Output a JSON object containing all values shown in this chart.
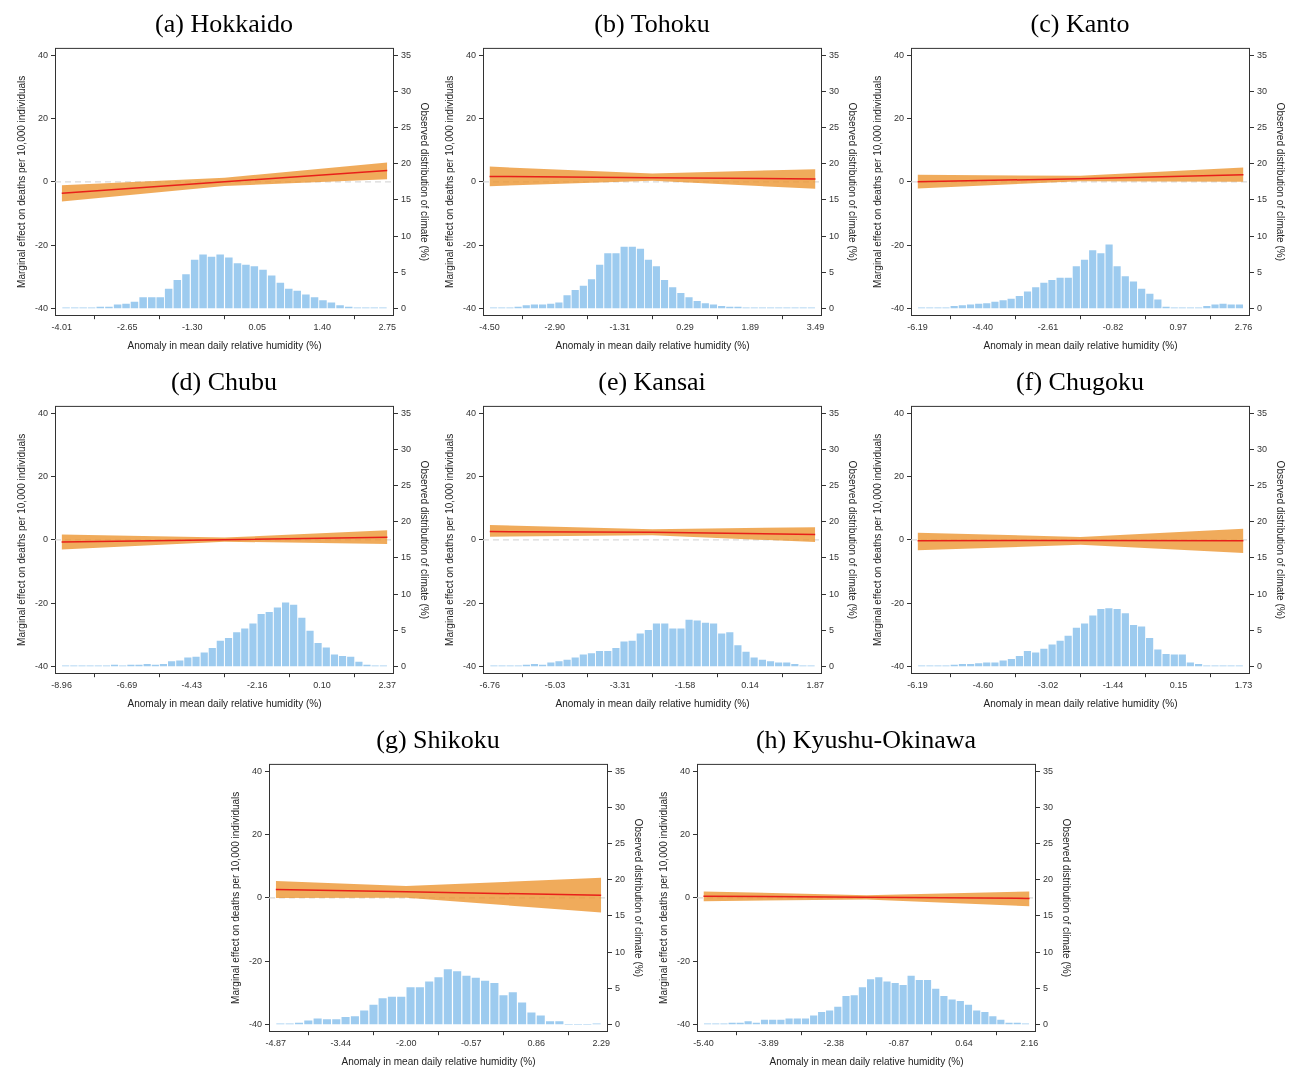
{
  "chart_data": [
    {
      "type": "line",
      "title": "(a) Hokkaido",
      "xlabel": "Anomaly in mean daily relative humidity (%)",
      "ylabel": "Marginal effect on deaths per 10,000 individuals",
      "y2label": "Observed distribution of climate (%)",
      "xlim": [
        -4.15,
        2.89
      ],
      "xticks": [
        -4.01,
        -2.65,
        {
          "value": -1.3,
          "label": "-1.30"
        },
        0.05,
        {
          "value": 1.4,
          "label": "1.40"
        },
        2.75
      ],
      "ylim": [
        -42.1,
        42.1
      ],
      "yticks": [
        -40,
        -20,
        0,
        20,
        40
      ],
      "y2lim": [
        -0.92,
        35.92
      ],
      "y2ticks": [
        0,
        5,
        10,
        15,
        20,
        25,
        30,
        35
      ],
      "ref_lines": [
        {
          "axis": "y",
          "value": 0,
          "color": "#d9d9d9",
          "line_style": "dashed"
        }
      ],
      "series": [
        {
          "type": "histogram",
          "axis": "y2",
          "color": "#9dcbef",
          "bins": [
            -4.01,
            -3.83,
            -3.65,
            -3.48,
            -3.3,
            -3.12,
            -2.94,
            -2.76,
            -2.59,
            -2.41,
            -2.23,
            -2.05,
            -1.88,
            -1.7,
            -1.52,
            -1.34,
            -1.16,
            -0.99,
            -0.81,
            -0.63,
            -0.45,
            -0.27,
            -0.1,
            0.08,
            0.26,
            0.44,
            0.62,
            0.79,
            0.97,
            1.15,
            1.33,
            1.5,
            1.68,
            1.86,
            2.04,
            2.22,
            2.39,
            2.57,
            2.75
          ],
          "values": [
            0.1,
            0.1,
            0.1,
            0.1,
            0.2,
            0.2,
            0.5,
            0.6,
            0.9,
            1.5,
            1.5,
            1.5,
            2.7,
            3.9,
            4.7,
            6.7,
            7.4,
            7.1,
            7.4,
            7.0,
            6.2,
            6.0,
            5.8,
            5.3,
            4.5,
            3.5,
            2.7,
            2.4,
            1.9,
            1.5,
            1.1,
            0.8,
            0.4,
            0.2,
            0.1,
            0.1,
            0.1,
            0.1
          ]
        },
        {
          "type": "line",
          "color": "#e8201a",
          "x": [
            -4.01,
            -0.63,
            2.75
          ],
          "values": [
            -3.6,
            0,
            3.6
          ],
          "lower": [
            -6.2,
            -1.3,
            0.8
          ],
          "upper": [
            -1.1,
            1.3,
            6.1
          ]
        }
      ]
    },
    {
      "type": "line",
      "title": "(b) Tohoku",
      "xlabel": "Anomaly in mean daily relative humidity (%)",
      "ylabel": "Marginal effect on deaths per 10,000 individuals",
      "y2label": "Observed distribution of climate (%)",
      "xlim": [
        -4.66,
        3.65
      ],
      "xticks": [
        {
          "value": -4.5,
          "label": "-4.50"
        },
        {
          "value": -2.9,
          "label": "-2.90"
        },
        -1.31,
        0.29,
        1.89,
        3.49
      ],
      "ylim": [
        -42.1,
        42.1
      ],
      "yticks": [
        -40,
        -20,
        0,
        20,
        40
      ],
      "y2lim": [
        -0.92,
        35.92
      ],
      "y2ticks": [
        0,
        5,
        10,
        15,
        20,
        25,
        30,
        35
      ],
      "ref_lines": [
        {
          "axis": "y",
          "value": 0,
          "color": "#d9d9d9",
          "line_style": "dashed"
        }
      ],
      "series": [
        {
          "type": "histogram",
          "axis": "y2",
          "color": "#9dcbef",
          "bins": [
            -4.5,
            -4.3,
            -4.1,
            -3.9,
            -3.7,
            -3.5,
            -3.3,
            -3.1,
            -2.9,
            -2.7,
            -2.5,
            -2.3,
            -2.1,
            -1.9,
            -1.7,
            -1.5,
            -1.3,
            -1.1,
            -0.9,
            -0.7,
            -0.51,
            -0.31,
            -0.11,
            0.09,
            0.29,
            0.49,
            0.69,
            0.89,
            1.09,
            1.29,
            1.49,
            1.69,
            1.89,
            2.09,
            2.29,
            2.49,
            2.69,
            2.89,
            3.09,
            3.29,
            3.49
          ],
          "values": [
            0.1,
            0.1,
            0.1,
            0.2,
            0.4,
            0.5,
            0.5,
            0.6,
            0.8,
            1.8,
            2.5,
            3.1,
            4.0,
            6.0,
            7.6,
            7.6,
            8.5,
            8.5,
            8.2,
            6.7,
            5.8,
            3.9,
            2.9,
            2.1,
            1.5,
            1.0,
            0.7,
            0.5,
            0.3,
            0.2,
            0.2,
            0.1,
            0.1,
            0.1,
            0.1,
            0.1,
            0.1,
            0.1,
            0.1,
            0.1
          ]
        },
        {
          "type": "line",
          "color": "#e8201a",
          "x": [
            -4.5,
            -0.51,
            3.49
          ],
          "values": [
            1.7,
            1.3,
            0.9
          ],
          "lower": [
            -1.4,
            0.3,
            -2.2
          ],
          "upper": [
            4.8,
            2.6,
            4.0
          ]
        }
      ]
    },
    {
      "type": "line",
      "title": "(c) Kanto",
      "xlabel": "Anomaly in mean daily relative humidity (%)",
      "ylabel": "Marginal effect on deaths per 10,000 individuals",
      "y2label": "Observed distribution of climate (%)",
      "xlim": [
        -6.37,
        2.94
      ],
      "xticks": [
        -6.19,
        {
          "value": -4.4,
          "label": "-4.40"
        },
        -2.61,
        -0.82,
        0.97,
        2.76
      ],
      "ylim": [
        -42.1,
        42.1
      ],
      "yticks": [
        -40,
        -20,
        0,
        20,
        40
      ],
      "y2lim": [
        -0.92,
        35.92
      ],
      "y2ticks": [
        0,
        5,
        10,
        15,
        20,
        25,
        30,
        35
      ],
      "ref_lines": [
        {
          "axis": "y",
          "value": 0,
          "color": "#d9d9d9",
          "line_style": "dashed"
        }
      ],
      "series": [
        {
          "type": "histogram",
          "axis": "y2",
          "color": "#9dcbef",
          "bins": [
            -6.19,
            -5.97,
            -5.74,
            -5.52,
            -5.3,
            -5.07,
            -4.85,
            -4.62,
            -4.4,
            -4.18,
            -3.95,
            -3.73,
            -3.51,
            -3.28,
            -3.06,
            -2.83,
            -2.61,
            -2.39,
            -2.16,
            -1.94,
            -1.72,
            -1.49,
            -1.27,
            -1.04,
            -0.82,
            -0.6,
            -0.37,
            -0.15,
            0.08,
            0.3,
            0.52,
            0.75,
            0.97,
            1.19,
            1.42,
            1.64,
            1.87,
            2.09,
            2.31,
            2.54,
            2.76
          ],
          "values": [
            0.1,
            0.1,
            0.1,
            0.1,
            0.3,
            0.4,
            0.5,
            0.6,
            0.7,
            0.9,
            1.1,
            1.3,
            1.7,
            2.3,
            2.9,
            3.5,
            3.9,
            4.2,
            4.2,
            5.8,
            6.7,
            8.0,
            7.6,
            8.8,
            5.8,
            4.4,
            3.7,
            2.7,
            2.0,
            1.2,
            0.2,
            0.1,
            0.1,
            0.1,
            0.1,
            0.3,
            0.5,
            0.6,
            0.5,
            0.5
          ]
        },
        {
          "type": "line",
          "color": "#e8201a",
          "x": [
            -6.19,
            -1.72,
            2.76
          ],
          "values": [
            0,
            1.0,
            2.2
          ],
          "lower": [
            -2.1,
            0.2,
            0
          ],
          "upper": [
            2.2,
            1.9,
            4.5
          ]
        }
      ]
    },
    {
      "type": "line",
      "title": "(d) Chubu",
      "xlabel": "Anomaly in mean daily relative humidity (%)",
      "ylabel": "Marginal effect on deaths per 10,000 individuals",
      "y2label": "Observed distribution of climate (%)",
      "xlim": [
        -9.19,
        2.6
      ],
      "xticks": [
        -8.96,
        -6.69,
        -4.43,
        -2.16,
        {
          "value": 0.1,
          "label": "0.10"
        },
        2.37
      ],
      "ylim": [
        -42.1,
        42.1
      ],
      "yticks": [
        -40,
        -20,
        0,
        20,
        40
      ],
      "y2lim": [
        -0.92,
        35.92
      ],
      "y2ticks": [
        0,
        5,
        10,
        15,
        20,
        25,
        30,
        35
      ],
      "ref_lines": [
        {
          "axis": "y",
          "value": 0,
          "color": "#d9d9d9",
          "line_style": "dashed"
        }
      ],
      "series": [
        {
          "type": "histogram",
          "axis": "y2",
          "color": "#9dcbef",
          "bins": [
            -8.96,
            -8.68,
            -8.39,
            -8.11,
            -7.83,
            -7.54,
            -7.26,
            -6.98,
            -6.69,
            -6.41,
            -6.13,
            -5.84,
            -5.56,
            -5.28,
            -4.99,
            -4.71,
            -4.43,
            -4.14,
            -3.86,
            -3.58,
            -3.3,
            -3.01,
            -2.73,
            -2.45,
            -2.16,
            -1.88,
            -1.6,
            -1.31,
            -1.03,
            -0.75,
            -0.46,
            -0.18,
            0.1,
            0.39,
            0.67,
            0.95,
            1.24,
            1.52,
            1.8,
            2.09,
            2.37
          ],
          "values": [
            0.1,
            0.1,
            0.1,
            0.1,
            0.1,
            0.1,
            0.2,
            0.1,
            0.2,
            0.2,
            0.3,
            0.2,
            0.3,
            0.7,
            0.8,
            1.2,
            1.3,
            1.9,
            2.5,
            3.5,
            3.9,
            4.7,
            5.2,
            5.9,
            7.2,
            7.5,
            8.1,
            8.8,
            8.5,
            6.7,
            4.9,
            3.2,
            2.6,
            1.6,
            1.4,
            1.3,
            0.6,
            0.2,
            0.1,
            0.1
          ]
        },
        {
          "type": "line",
          "color": "#e8201a",
          "x": [
            -8.96,
            -3.3,
            2.37
          ],
          "values": [
            -0.7,
            0,
            0.8
          ],
          "lower": [
            -3.1,
            -0.6,
            -1.3
          ],
          "upper": [
            1.7,
            0.7,
            3.0
          ]
        }
      ]
    },
    {
      "type": "line",
      "title": "(e) Kansai",
      "xlabel": "Anomaly in mean daily relative humidity (%)",
      "ylabel": "Marginal effect on deaths per 10,000 individuals",
      "y2label": "Observed distribution of climate (%)",
      "xlim": [
        -6.94,
        2.05
      ],
      "xticks": [
        -6.76,
        -5.03,
        -3.31,
        -1.58,
        0.14,
        1.87
      ],
      "ylim": [
        -42.1,
        42.1
      ],
      "yticks": [
        -40,
        -20,
        0,
        20,
        40
      ],
      "y2lim": [
        -0.92,
        35.92
      ],
      "y2ticks": [
        0,
        5,
        10,
        15,
        20,
        25,
        30,
        35
      ],
      "ref_lines": [
        {
          "axis": "y",
          "value": 0,
          "color": "#d9d9d9",
          "line_style": "dashed"
        }
      ],
      "series": [
        {
          "type": "histogram",
          "axis": "y2",
          "color": "#9dcbef",
          "bins": [
            -6.76,
            -6.54,
            -6.33,
            -6.11,
            -5.9,
            -5.68,
            -5.47,
            -5.25,
            -5.03,
            -4.82,
            -4.6,
            -4.39,
            -4.17,
            -3.96,
            -3.74,
            -3.52,
            -3.31,
            -3.09,
            -2.88,
            -2.66,
            -2.45,
            -2.23,
            -2.01,
            -1.8,
            -1.58,
            -1.37,
            -1.15,
            -0.93,
            -0.72,
            -0.5,
            -0.29,
            -0.07,
            0.14,
            0.36,
            0.58,
            0.79,
            1.01,
            1.22,
            1.44,
            1.65,
            1.87
          ],
          "values": [
            0.1,
            0.1,
            0.1,
            0.1,
            0.2,
            0.3,
            0.2,
            0.5,
            0.7,
            0.9,
            1.2,
            1.6,
            1.8,
            2.1,
            2.1,
            2.5,
            3.4,
            3.5,
            4.5,
            5.0,
            5.9,
            5.9,
            5.2,
            5.2,
            6.4,
            6.3,
            6.0,
            5.9,
            4.5,
            4.7,
            2.9,
            2.0,
            1.2,
            0.9,
            0.7,
            0.5,
            0.5,
            0.3,
            0.1,
            0.1
          ]
        },
        {
          "type": "line",
          "color": "#e8201a",
          "x": [
            -6.76,
            -2.45,
            1.87
          ],
          "values": [
            2.6,
            2.4,
            1.7
          ],
          "lower": [
            1.0,
            1.4,
            -0.7
          ],
          "upper": [
            4.7,
            3.3,
            4.0
          ]
        }
      ]
    },
    {
      "type": "line",
      "title": "(f) Chugoku",
      "xlabel": "Anomaly in mean daily relative humidity (%)",
      "ylabel": "Marginal effect on deaths per 10,000 individuals",
      "y2label": "Observed distribution of climate (%)",
      "xlim": [
        -6.35,
        1.89
      ],
      "xticks": [
        -6.19,
        {
          "value": -4.6,
          "label": "-4.60"
        },
        -3.02,
        -1.44,
        0.15,
        1.73
      ],
      "ylim": [
        -42.1,
        42.1
      ],
      "yticks": [
        -40,
        -20,
        0,
        20,
        40
      ],
      "y2lim": [
        -0.92,
        35.92
      ],
      "y2ticks": [
        0,
        5,
        10,
        15,
        20,
        25,
        30,
        35
      ],
      "ref_lines": [
        {
          "axis": "y",
          "value": 0,
          "color": "#d9d9d9",
          "line_style": "dashed"
        }
      ],
      "series": [
        {
          "type": "histogram",
          "axis": "y2",
          "color": "#9dcbef",
          "bins": [
            -6.19,
            -5.99,
            -5.79,
            -5.6,
            -5.4,
            -5.2,
            -5.0,
            -4.8,
            -4.61,
            -4.41,
            -4.21,
            -4.01,
            -3.81,
            -3.62,
            -3.42,
            -3.22,
            -3.02,
            -2.82,
            -2.63,
            -2.43,
            -2.23,
            -2.03,
            -1.83,
            -1.64,
            -1.44,
            -1.24,
            -1.04,
            -0.84,
            -0.65,
            -0.45,
            -0.25,
            -0.05,
            0.15,
            0.34,
            0.54,
            0.74,
            0.94,
            1.14,
            1.33,
            1.53,
            1.73
          ],
          "values": [
            0.1,
            0.1,
            0.1,
            0.1,
            0.2,
            0.3,
            0.3,
            0.4,
            0.5,
            0.5,
            0.8,
            1.0,
            1.4,
            2.1,
            1.9,
            2.4,
            3.0,
            3.5,
            4.2,
            5.3,
            5.9,
            7.0,
            7.9,
            8.0,
            7.9,
            7.3,
            5.7,
            5.5,
            3.9,
            2.3,
            1.7,
            1.6,
            1.6,
            0.5,
            0.3,
            0.1,
            0.1,
            0.1,
            0.1,
            0.1
          ]
        },
        {
          "type": "line",
          "color": "#e8201a",
          "x": [
            -6.19,
            -2.23,
            1.73
          ],
          "values": [
            -0.3,
            -0.2,
            -0.3
          ],
          "lower": [
            -3.3,
            -1.6,
            -4.2
          ],
          "upper": [
            2.2,
            0.9,
            3.5
          ]
        }
      ]
    },
    {
      "type": "line",
      "title": "(g) Shikoku",
      "xlabel": "Anomaly in mean daily relative humidity (%)",
      "ylabel": "Marginal effect on deaths per 10,000 individuals",
      "y2label": "Observed distribution of climate (%)",
      "xlim": [
        -5.02,
        2.44
      ],
      "xticks": [
        -4.87,
        -3.44,
        {
          "value": -2,
          "label": "-2.00"
        },
        -0.57,
        0.86,
        2.29
      ],
      "ylim": [
        -42.1,
        42.1
      ],
      "yticks": [
        -40,
        -20,
        0,
        20,
        40
      ],
      "y2lim": [
        -0.92,
        35.92
      ],
      "y2ticks": [
        0,
        5,
        10,
        15,
        20,
        25,
        30,
        35
      ],
      "ref_lines": [
        {
          "axis": "y",
          "value": 0,
          "color": "#d9d9d9",
          "line_style": "dashed"
        }
      ],
      "series": [
        {
          "type": "histogram",
          "axis": "y2",
          "color": "#9dcbef",
          "bins": [
            -4.87,
            -4.67,
            -4.46,
            -4.26,
            -4.05,
            -3.85,
            -3.64,
            -3.44,
            -3.23,
            -3.03,
            -2.82,
            -2.62,
            -2.42,
            -2.21,
            -2.01,
            -1.8,
            -1.6,
            -1.39,
            -1.19,
            -0.98,
            -0.78,
            -0.57,
            -0.37,
            -0.16,
            0.04,
            0.24,
            0.45,
            0.65,
            0.86,
            1.06,
            1.27,
            1.47,
            1.68,
            1.88,
            2.09,
            2.29
          ],
          "values": [
            0.1,
            0.1,
            0.2,
            0.5,
            0.8,
            0.7,
            0.7,
            1.0,
            1.1,
            1.9,
            2.7,
            3.6,
            3.8,
            3.8,
            5.1,
            5.1,
            5.9,
            6.5,
            7.6,
            7.3,
            6.7,
            6.4,
            6.0,
            5.7,
            4.0,
            4.4,
            3.0,
            1.6,
            1.2,
            0.4,
            0.4,
            0,
            0,
            0,
            0.1
          ]
        },
        {
          "type": "line",
          "color": "#e8201a",
          "x": [
            -4.87,
            -2.0,
            2.29
          ],
          "values": [
            2.6,
            1.9,
            0.8
          ],
          "lower": [
            -0.1,
            0,
            -4.6
          ],
          "upper": [
            5.3,
            3.7,
            6.3
          ]
        }
      ]
    },
    {
      "type": "line",
      "title": "(h) Kyushu-Okinawa",
      "xlabel": "Anomaly in mean daily relative humidity (%)",
      "ylabel": "Marginal effect on deaths per 10,000 individuals",
      "y2label": "Observed distribution of climate (%)",
      "xlim": [
        -5.55,
        2.31
      ],
      "xticks": [
        {
          "value": -5.4,
          "label": "-5.40"
        },
        -3.89,
        -2.38,
        -0.87,
        0.64,
        2.16
      ],
      "ylim": [
        -42.1,
        42.1
      ],
      "yticks": [
        -40,
        -20,
        0,
        20,
        40
      ],
      "y2lim": [
        -0.92,
        35.92
      ],
      "y2ticks": [
        0,
        5,
        10,
        15,
        20,
        25,
        30,
        35
      ],
      "ref_lines": [
        {
          "axis": "y",
          "value": 0,
          "color": "#d9d9d9",
          "line_style": "dashed"
        }
      ],
      "series": [
        {
          "type": "histogram",
          "axis": "y2",
          "color": "#9dcbef",
          "bins": [
            -5.4,
            -5.21,
            -5.02,
            -4.83,
            -4.64,
            -4.46,
            -4.27,
            -4.08,
            -3.89,
            -3.7,
            -3.51,
            -3.32,
            -3.13,
            -2.94,
            -2.75,
            -2.57,
            -2.38,
            -2.19,
            -2.0,
            -1.81,
            -1.62,
            -1.43,
            -1.24,
            -1.05,
            -0.86,
            -0.68,
            -0.49,
            -0.3,
            -0.11,
            0.08,
            0.27,
            0.46,
            0.65,
            0.84,
            1.03,
            1.22,
            1.4,
            1.59,
            1.78,
            1.97,
            2.16
          ],
          "values": [
            0.1,
            0.1,
            0.1,
            0.2,
            0.2,
            0.4,
            0.2,
            0.6,
            0.6,
            0.6,
            0.8,
            0.8,
            0.8,
            1.2,
            1.7,
            1.9,
            2.4,
            3.9,
            4.0,
            5.1,
            6.2,
            6.5,
            5.9,
            5.7,
            5.4,
            6.7,
            6.1,
            6.1,
            4.9,
            3.9,
            3.4,
            3.2,
            2.7,
            1.9,
            1.7,
            1.1,
            0.6,
            0.2,
            0.2,
            0.1
          ]
        },
        {
          "type": "line",
          "color": "#e8201a",
          "x": [
            -5.4,
            -1.62,
            2.16
          ],
          "values": [
            0.5,
            0.2,
            -0.2
          ],
          "lower": [
            -1.1,
            -0.5,
            -2.7
          ],
          "upper": [
            2.0,
            0.8,
            2.0
          ]
        }
      ]
    }
  ]
}
